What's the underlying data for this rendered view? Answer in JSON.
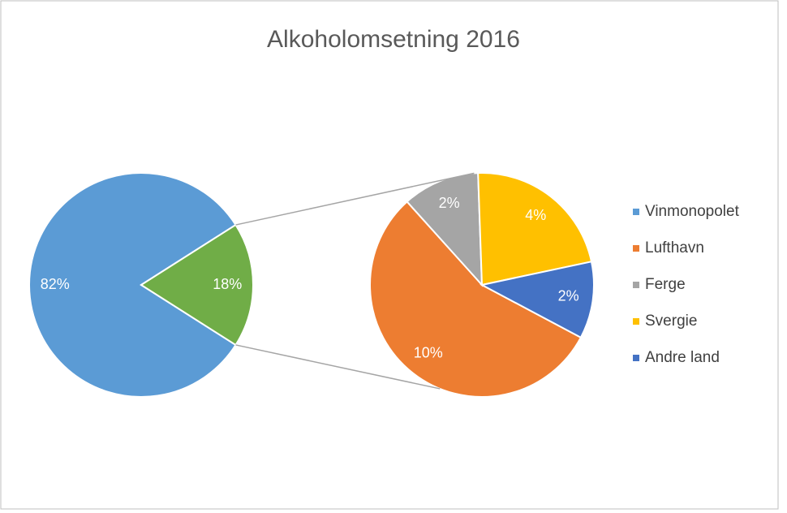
{
  "chart_data": {
    "type": "pie-of-pie",
    "title": "Alkoholomsetning 2016",
    "main": {
      "categories": [
        "Vinmonopolet",
        null
      ],
      "values": [
        82,
        18
      ],
      "value_labels": [
        "82%",
        "18%"
      ],
      "colors": [
        "#5b9bd5",
        "#70ad47"
      ]
    },
    "detail": {
      "categories": [
        "Lufthavn",
        "Ferge",
        "Svergie",
        "Andre land"
      ],
      "values": [
        10,
        2,
        4,
        2
      ],
      "value_labels": [
        "10%",
        "2%",
        "4%",
        "2%"
      ],
      "colors": [
        "#ed7d31",
        "#a5a5a5",
        "#ffc000",
        "#4472c4"
      ]
    },
    "legend": "right"
  }
}
